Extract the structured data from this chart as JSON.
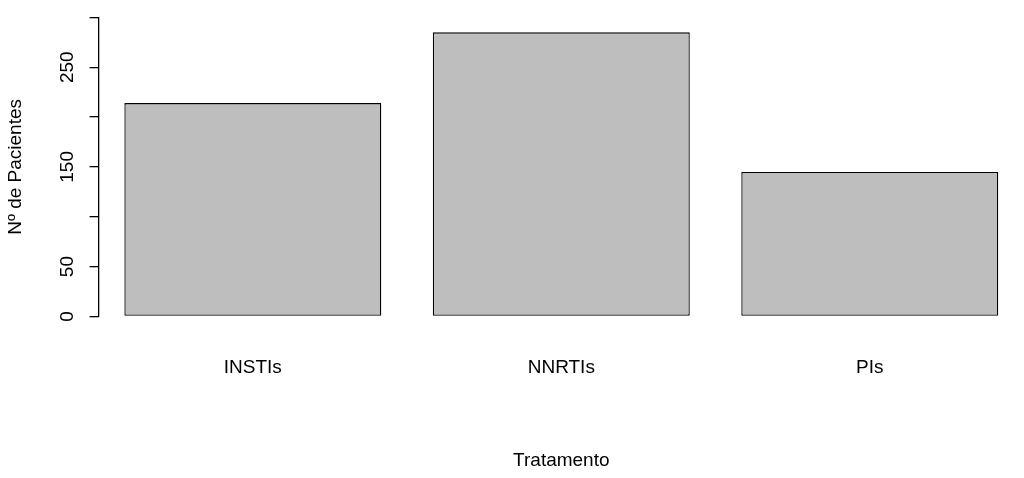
{
  "chart_data": {
    "type": "bar",
    "xlabel": "Tratamento",
    "ylabel": "Nº de Pacientes",
    "categories": [
      "INSTIs",
      "NNRTIs",
      "PIs"
    ],
    "values": [
      214,
      285,
      145
    ],
    "color": "#bebebe",
    "ylim": [
      0,
      300
    ],
    "yticks": [
      0,
      50,
      {
        "value": 100,
        "label": null
      },
      150,
      {
        "value": 200,
        "label": null
      },
      250,
      {
        "value": 300,
        "label": null
      }
    ],
    "grid": false,
    "legend": false
  }
}
